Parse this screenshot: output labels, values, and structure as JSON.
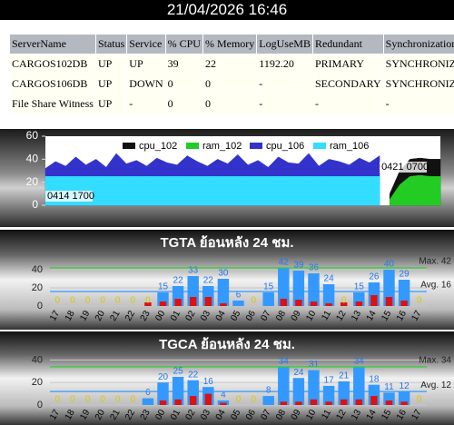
{
  "header": {
    "datetime": "21/04/2026 16:46"
  },
  "table": {
    "columns": [
      "ServerName",
      "Status",
      "Service",
      "% CPU",
      "% Memory",
      "LogUseMB",
      "Redundant",
      "Synchronization"
    ],
    "rows": [
      [
        "CARGOS102DB",
        "UP",
        "UP",
        "39",
        "22",
        "1192.20",
        "PRIMARY",
        "SYNCHRONIZED"
      ],
      [
        "CARGOS106DB",
        "UP",
        "DOWN",
        "0",
        "0",
        "-",
        "SECONDARY",
        "SYNCHRONIZED"
      ],
      [
        "File Share Witness",
        "UP",
        "-",
        "0",
        "0",
        "-",
        "-",
        "-"
      ]
    ]
  },
  "chart_data": [
    {
      "type": "area",
      "categories": [
        "0414 1700",
        null,
        null,
        null,
        null,
        null,
        null,
        null,
        null,
        null,
        null,
        null,
        null,
        null,
        null,
        null,
        null,
        null,
        null,
        null,
        null,
        null,
        null,
        null,
        null,
        null,
        null,
        null,
        null,
        null,
        null,
        null,
        null,
        "0421 0700",
        null,
        null,
        null,
        null,
        null,
        null
      ],
      "series": [
        {
          "name": "cpu_102",
          "color": "#111111",
          "values": [
            null,
            null,
            null,
            null,
            null,
            null,
            null,
            null,
            null,
            null,
            null,
            null,
            null,
            null,
            null,
            null,
            null,
            null,
            null,
            null,
            null,
            null,
            null,
            null,
            null,
            null,
            null,
            null,
            null,
            null,
            null,
            null,
            null,
            null,
            10,
            30,
            40,
            41,
            40,
            40
          ]
        },
        {
          "name": "ram_102",
          "color": "#22cc22",
          "values": [
            null,
            null,
            null,
            null,
            null,
            null,
            null,
            null,
            null,
            null,
            null,
            null,
            null,
            null,
            null,
            null,
            null,
            null,
            null,
            null,
            null,
            null,
            null,
            null,
            null,
            null,
            null,
            null,
            null,
            null,
            null,
            null,
            null,
            null,
            5,
            18,
            25,
            26,
            25,
            25
          ]
        },
        {
          "name": "cpu_106",
          "color": "#3333cc",
          "values": [
            32,
            38,
            34,
            42,
            35,
            40,
            33,
            45,
            36,
            39,
            34,
            41,
            37,
            35,
            43,
            38,
            34,
            40,
            36,
            44,
            35,
            39,
            33,
            42,
            37,
            36,
            45,
            34,
            40,
            38,
            35,
            41,
            37,
            43,
            null,
            null,
            null,
            null,
            null,
            null
          ]
        },
        {
          "name": "ram_106",
          "color": "#33ddff",
          "values": [
            25,
            25,
            25,
            25,
            25,
            25,
            25,
            25,
            25,
            25,
            25,
            25,
            25,
            25,
            25,
            25,
            25,
            25,
            25,
            25,
            25,
            25,
            25,
            25,
            25,
            25,
            25,
            25,
            25,
            25,
            25,
            25,
            25,
            25,
            null,
            null,
            null,
            null,
            null,
            null
          ]
        }
      ],
      "ylim": [
        0,
        60
      ],
      "yticks": [
        0,
        20,
        40,
        60
      ]
    },
    {
      "type": "bar",
      "title": "TGTA ย้อนหลัง 24 ชม.",
      "categories": [
        "17",
        "18",
        "19",
        "20",
        "21",
        "22",
        "23",
        "00",
        "01",
        "02",
        "03",
        "04",
        "05",
        "06",
        "07",
        "08",
        "09",
        "10",
        "11",
        "12",
        "13",
        "14",
        "15",
        "16",
        "17"
      ],
      "series": [
        {
          "color": "#3399ff",
          "values": [
            0,
            0,
            0,
            0,
            0,
            0,
            0,
            15,
            22,
            33,
            22,
            30,
            6,
            0,
            15,
            42,
            39,
            36,
            24,
            0,
            15,
            26,
            40,
            29,
            0
          ]
        },
        {
          "color": "#dd1111",
          "values": [
            0,
            0,
            0,
            0,
            0,
            0,
            4,
            5,
            8,
            10,
            10,
            3,
            0,
            0,
            0,
            8,
            7,
            5,
            3,
            4,
            5,
            12,
            10,
            6,
            0
          ]
        }
      ],
      "ylim": [
        0,
        50
      ],
      "yticks": [
        0,
        20,
        40
      ],
      "max": {
        "value": 42,
        "label": "Max. 42"
      },
      "avg": {
        "value": 16,
        "label": "Avg. 16"
      }
    },
    {
      "type": "bar",
      "title": "TGCA ย้อนหลัง 24 ชม.",
      "categories": [
        "17",
        "18",
        "19",
        "20",
        "21",
        "22",
        "23",
        "00",
        "01",
        "02",
        "03",
        "04",
        "05",
        "06",
        "07",
        "08",
        "09",
        "10",
        "11",
        "12",
        "13",
        "14",
        "15",
        "16",
        "17"
      ],
      "series": [
        {
          "color": "#3399ff",
          "values": [
            0,
            0,
            0,
            0,
            0,
            0,
            6,
            20,
            25,
            22,
            16,
            4,
            0,
            0,
            8,
            34,
            24,
            31,
            17,
            21,
            34,
            18,
            11,
            12,
            0
          ]
        },
        {
          "color": "#dd1111",
          "values": [
            0,
            0,
            0,
            0,
            0,
            0,
            0,
            4,
            5,
            8,
            10,
            2,
            0,
            0,
            0,
            3,
            3,
            5,
            3,
            5,
            5,
            8,
            4,
            3,
            0
          ]
        }
      ],
      "ylim": [
        0,
        50
      ],
      "yticks": [
        0,
        20,
        40
      ],
      "max": {
        "value": 34,
        "label": "Max. 34"
      },
      "avg": {
        "value": 12,
        "label": "Avg. 12"
      }
    }
  ]
}
